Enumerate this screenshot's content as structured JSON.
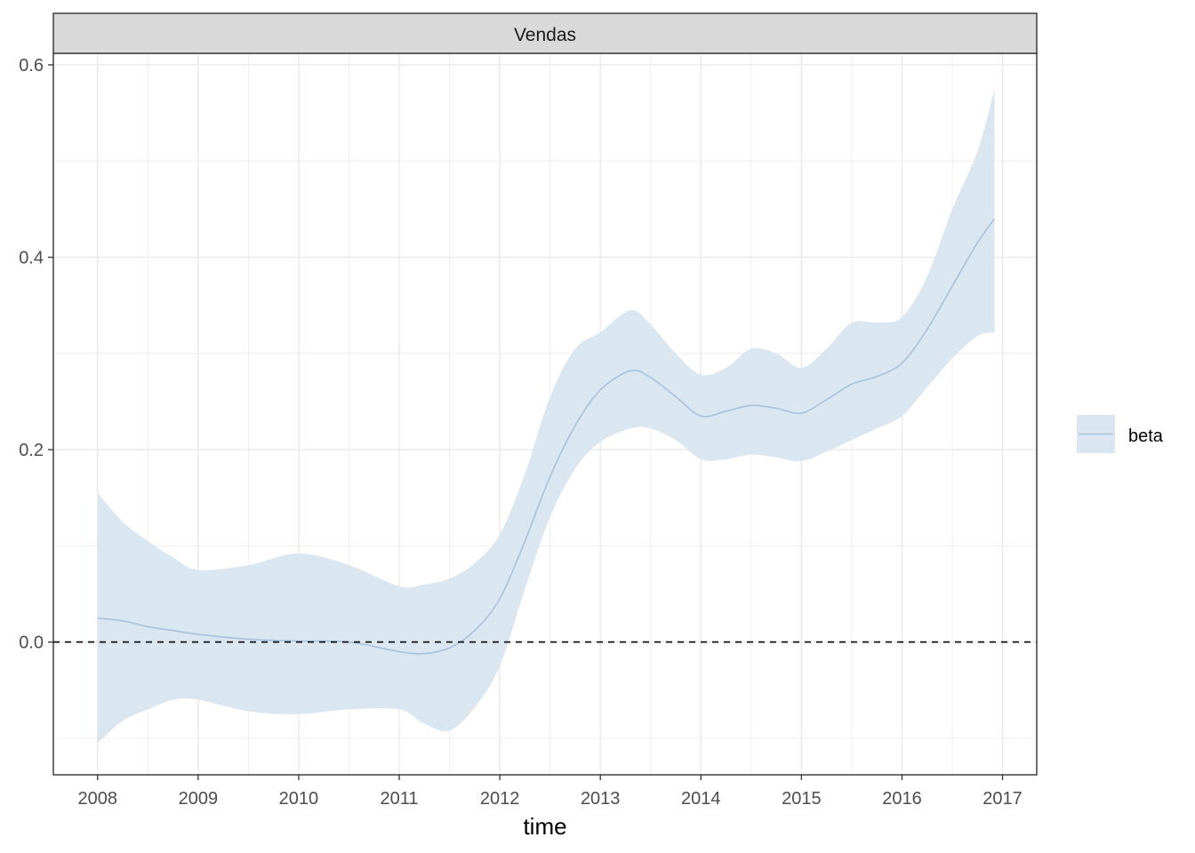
{
  "chart_data": {
    "type": "area",
    "facet_label": "Vendas",
    "xlabel": "time",
    "ylabel": "",
    "xlim": [
      2007.56,
      2017.34
    ],
    "ylim": [
      -0.138,
      0.612
    ],
    "x_ticks": [
      2008,
      2009,
      2010,
      2011,
      2012,
      2013,
      2014,
      2015,
      2016,
      2017
    ],
    "x_tick_labels": [
      "2008",
      "2009",
      "2010",
      "2011",
      "2012",
      "2013",
      "2014",
      "2015",
      "2016",
      "2017"
    ],
    "y_ticks": [
      0.0,
      0.2,
      0.4,
      0.6
    ],
    "y_tick_labels": [
      "0.0",
      "0.2",
      "0.4",
      "0.6"
    ],
    "y_minor_ticks": [
      -0.1,
      0.1,
      0.3,
      0.5
    ],
    "grid": true,
    "reference_line": {
      "y": 0.0,
      "style": "dashed",
      "color": "#000000"
    },
    "legend": {
      "position": "right",
      "entries": [
        "beta"
      ]
    },
    "colors": {
      "line": "#a9c2dc",
      "band": "#dae6f0",
      "grid": "#ebebeb",
      "strip_bg": "#d9d9d9"
    },
    "series": [
      {
        "name": "beta",
        "x": [
          2008.0,
          2008.25,
          2008.5,
          2008.75,
          2009.0,
          2009.5,
          2010.0,
          2010.5,
          2011.0,
          2011.25,
          2011.5,
          2011.75,
          2012.0,
          2012.25,
          2012.5,
          2012.75,
          2013.0,
          2013.3,
          2013.5,
          2013.75,
          2014.0,
          2014.25,
          2014.5,
          2014.75,
          2015.0,
          2015.25,
          2015.5,
          2015.75,
          2016.0,
          2016.25,
          2016.5,
          2016.75,
          2016.92
        ],
        "y": [
          0.025,
          0.022,
          0.016,
          0.012,
          0.008,
          0.003,
          0.001,
          0.0,
          -0.01,
          -0.012,
          -0.006,
          0.012,
          0.045,
          0.105,
          0.172,
          0.225,
          0.262,
          0.282,
          0.275,
          0.255,
          0.235,
          0.24,
          0.246,
          0.243,
          0.238,
          0.252,
          0.268,
          0.276,
          0.29,
          0.325,
          0.37,
          0.415,
          0.44
        ],
        "lower": [
          -0.105,
          -0.082,
          -0.07,
          -0.06,
          -0.06,
          -0.072,
          -0.075,
          -0.07,
          -0.07,
          -0.085,
          -0.092,
          -0.068,
          -0.025,
          0.055,
          0.13,
          0.18,
          0.208,
          0.222,
          0.222,
          0.21,
          0.19,
          0.19,
          0.195,
          0.192,
          0.188,
          0.198,
          0.21,
          0.222,
          0.235,
          0.265,
          0.295,
          0.318,
          0.322
        ],
        "upper": [
          0.155,
          0.125,
          0.105,
          0.088,
          0.075,
          0.08,
          0.092,
          0.08,
          0.058,
          0.06,
          0.066,
          0.082,
          0.112,
          0.175,
          0.255,
          0.305,
          0.322,
          0.345,
          0.33,
          0.3,
          0.278,
          0.285,
          0.305,
          0.3,
          0.285,
          0.305,
          0.332,
          0.332,
          0.338,
          0.38,
          0.45,
          0.51,
          0.575
        ]
      }
    ]
  }
}
